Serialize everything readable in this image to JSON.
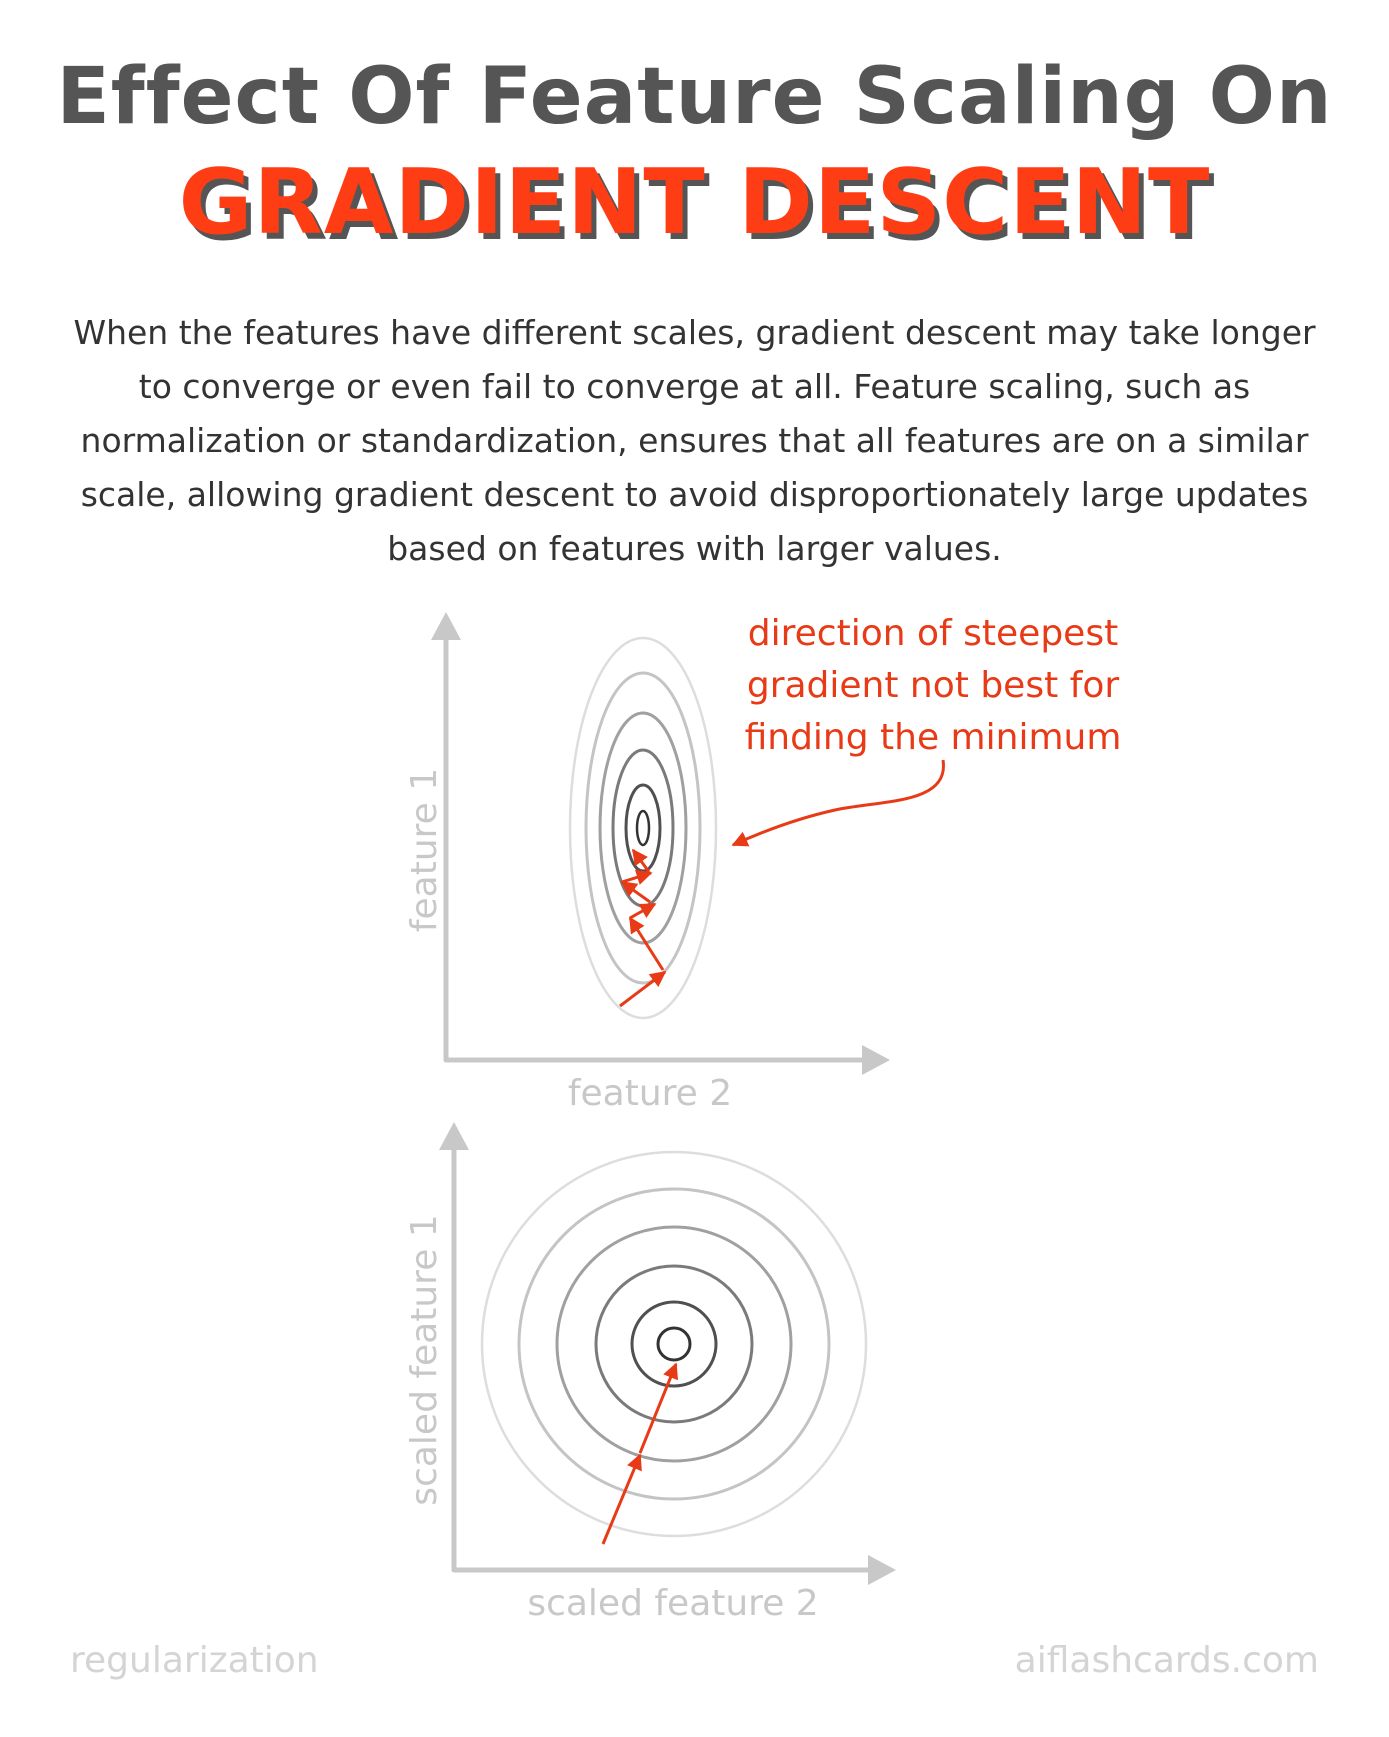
{
  "title": "Effect Of Feature Scaling On",
  "headline": "GRADIENT DESCENT",
  "description": "When the features have different scales, gradient descent may take longer to converge or even fail to converge at all. Feature scaling, such as normalization or standardization, ensures that all features are on a similar scale, allowing gradient descent to avoid disproportionately large updates based on features with larger values.",
  "diagram_top": {
    "y_axis_label": "feature 1",
    "x_axis_label": "feature 2",
    "annotation": [
      "direction of steepest",
      "gradient not best for",
      "finding the minimum"
    ]
  },
  "diagram_bottom": {
    "y_axis_label": "scaled feature 1",
    "x_axis_label": "scaled feature 2"
  },
  "footer": {
    "left": "regularization",
    "right": "aiflashcards.com"
  },
  "colors": {
    "accent": "#ff3d14",
    "arrow": "#e83a16",
    "axis": "#c8c8c8",
    "text": "#333333"
  }
}
